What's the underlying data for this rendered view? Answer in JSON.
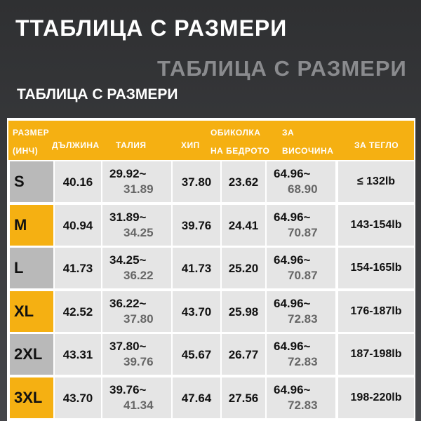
{
  "titles": [
    "ТТАБЛИЦА С РАЗМЕРИ",
    "ТАБЛИЦА С РАЗМЕРИ",
    "ТАБЛИЦА С РАЗМЕРИ"
  ],
  "table": {
    "header": [
      [
        "РАЗМЕР",
        "(ИНЧ)"
      ],
      [
        "ДЪЛЖИНА"
      ],
      [
        "ТАЛИЯ"
      ],
      [
        "ХИП"
      ],
      [
        "ОБИКОЛКА",
        "НА БЕДРОТО"
      ],
      [
        "ЗА",
        "ВИСОЧИНА"
      ],
      [
        "ЗА ТЕГЛО"
      ]
    ],
    "rows": [
      {
        "size": "S",
        "length": "40.16",
        "waist": [
          "29.92~",
          "31.89"
        ],
        "hip": "37.80",
        "thigh": "23.62",
        "height": [
          "64.96~",
          "68.90"
        ],
        "weight": "≤ 132lb"
      },
      {
        "size": "M",
        "length": "40.94",
        "waist": [
          "31.89~",
          "34.25"
        ],
        "hip": "39.76",
        "thigh": "24.41",
        "height": [
          "64.96~",
          "70.87"
        ],
        "weight": "143-154lb"
      },
      {
        "size": "L",
        "length": "41.73",
        "waist": [
          "34.25~",
          "36.22"
        ],
        "hip": "41.73",
        "thigh": "25.20",
        "height": [
          "64.96~",
          "70.87"
        ],
        "weight": "154-165lb"
      },
      {
        "size": "XL",
        "length": "42.52",
        "waist": [
          "36.22~",
          "37.80"
        ],
        "hip": "43.70",
        "thigh": "25.98",
        "height": [
          "64.96~",
          "72.83"
        ],
        "weight": "176-187lb"
      },
      {
        "size": "2XL",
        "length": "43.31",
        "waist": [
          "37.80~",
          "39.76"
        ],
        "hip": "45.67",
        "thigh": "26.77",
        "height": [
          "64.96~",
          "72.83"
        ],
        "weight": "187-198lb"
      },
      {
        "size": "3XL",
        "length": "43.70",
        "waist": [
          "39.76~",
          "41.34"
        ],
        "hip": "47.64",
        "thigh": "27.56",
        "height": [
          "64.96~",
          "72.83"
        ],
        "weight": "198-220lb"
      }
    ]
  }
}
